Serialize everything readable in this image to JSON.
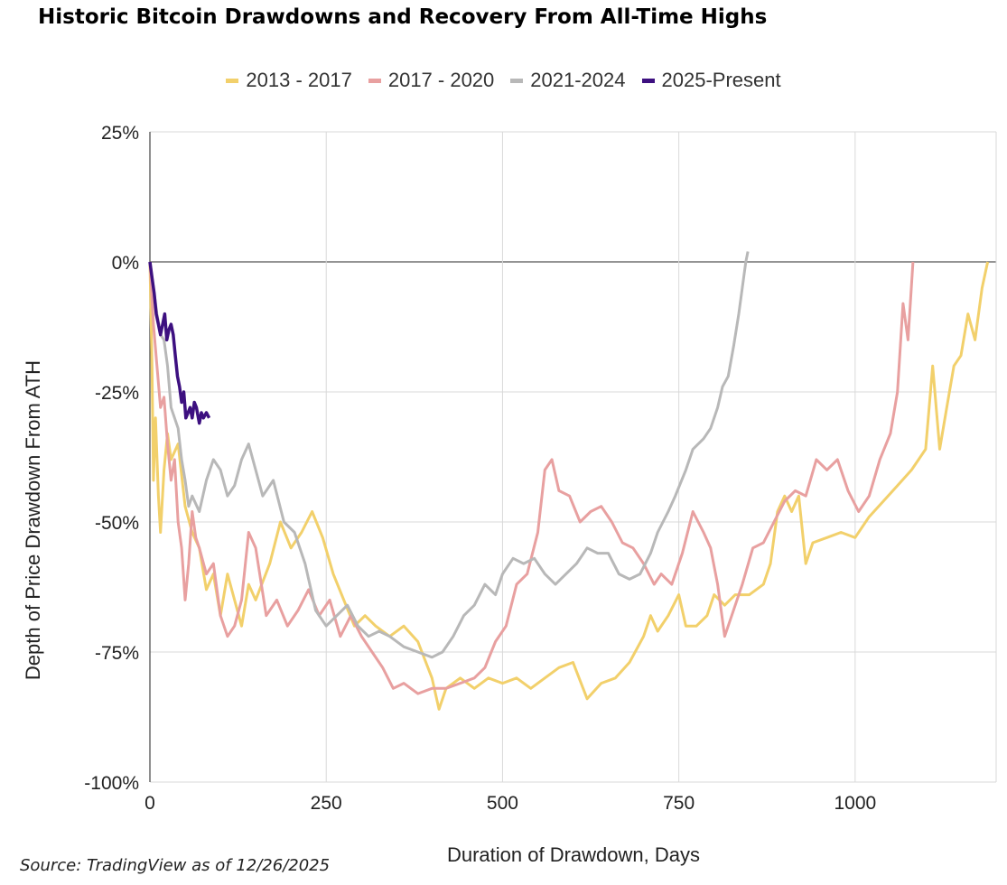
{
  "title": "Historic Bitcoin Drawdowns and Recovery From All-Time Highs",
  "source": "Source: TradingView as of 12/26/2025",
  "chart_data": {
    "type": "line",
    "title": "Historic Bitcoin Drawdowns and Recovery From All-Time Highs",
    "xlabel": "Duration of Drawdown, Days",
    "ylabel": "Depth of Price Drawdown From ATH",
    "xlim": [
      0,
      1200
    ],
    "ylim": [
      -100,
      25
    ],
    "x_ticks": [
      0,
      250,
      500,
      750,
      1000
    ],
    "x_tick_labels": [
      "0",
      "250",
      "500",
      "750",
      "1000"
    ],
    "y_ticks": [
      25,
      0,
      -25,
      -50,
      -75,
      -100
    ],
    "y_tick_labels": [
      "25%",
      "0%",
      "-25%",
      "-50%",
      "-75%",
      "-100%"
    ],
    "grid": true,
    "legend_position": "top-center",
    "series": [
      {
        "name": "2013 - 2017",
        "color": "#F2D06B",
        "points": [
          [
            0,
            0
          ],
          [
            3,
            -20
          ],
          [
            5,
            -42
          ],
          [
            8,
            -30
          ],
          [
            12,
            -45
          ],
          [
            15,
            -52
          ],
          [
            20,
            -40
          ],
          [
            25,
            -33
          ],
          [
            30,
            -38
          ],
          [
            40,
            -35
          ],
          [
            50,
            -47
          ],
          [
            60,
            -52
          ],
          [
            70,
            -55
          ],
          [
            80,
            -63
          ],
          [
            90,
            -60
          ],
          [
            100,
            -68
          ],
          [
            110,
            -60
          ],
          [
            120,
            -65
          ],
          [
            130,
            -70
          ],
          [
            140,
            -62
          ],
          [
            150,
            -65
          ],
          [
            170,
            -58
          ],
          [
            185,
            -50
          ],
          [
            200,
            -55
          ],
          [
            215,
            -52
          ],
          [
            230,
            -48
          ],
          [
            245,
            -53
          ],
          [
            260,
            -60
          ],
          [
            275,
            -65
          ],
          [
            290,
            -70
          ],
          [
            305,
            -68
          ],
          [
            320,
            -70
          ],
          [
            340,
            -72
          ],
          [
            360,
            -70
          ],
          [
            380,
            -73
          ],
          [
            400,
            -80
          ],
          [
            410,
            -86
          ],
          [
            420,
            -82
          ],
          [
            440,
            -80
          ],
          [
            460,
            -82
          ],
          [
            480,
            -80
          ],
          [
            500,
            -81
          ],
          [
            520,
            -80
          ],
          [
            540,
            -82
          ],
          [
            560,
            -80
          ],
          [
            580,
            -78
          ],
          [
            600,
            -77
          ],
          [
            620,
            -84
          ],
          [
            640,
            -81
          ],
          [
            660,
            -80
          ],
          [
            680,
            -77
          ],
          [
            700,
            -72
          ],
          [
            710,
            -68
          ],
          [
            720,
            -71
          ],
          [
            735,
            -68
          ],
          [
            750,
            -64
          ],
          [
            760,
            -70
          ],
          [
            775,
            -70
          ],
          [
            790,
            -68
          ],
          [
            800,
            -64
          ],
          [
            815,
            -66
          ],
          [
            830,
            -64
          ],
          [
            850,
            -64
          ],
          [
            870,
            -62
          ],
          [
            880,
            -58
          ],
          [
            890,
            -48
          ],
          [
            900,
            -45
          ],
          [
            910,
            -48
          ],
          [
            920,
            -45
          ],
          [
            930,
            -58
          ],
          [
            940,
            -54
          ],
          [
            960,
            -53
          ],
          [
            980,
            -52
          ],
          [
            1000,
            -53
          ],
          [
            1020,
            -49
          ],
          [
            1040,
            -46
          ],
          [
            1060,
            -43
          ],
          [
            1080,
            -40
          ],
          [
            1100,
            -36
          ],
          [
            1110,
            -20
          ],
          [
            1120,
            -36
          ],
          [
            1130,
            -28
          ],
          [
            1140,
            -20
          ],
          [
            1150,
            -18
          ],
          [
            1160,
            -10
          ],
          [
            1170,
            -15
          ],
          [
            1180,
            -5
          ],
          [
            1188,
            0
          ]
        ]
      },
      {
        "name": "2017 - 2020",
        "color": "#E8A0A0",
        "points": [
          [
            0,
            0
          ],
          [
            5,
            -12
          ],
          [
            10,
            -20
          ],
          [
            15,
            -28
          ],
          [
            20,
            -26
          ],
          [
            25,
            -35
          ],
          [
            30,
            -42
          ],
          [
            35,
            -38
          ],
          [
            40,
            -50
          ],
          [
            45,
            -55
          ],
          [
            50,
            -65
          ],
          [
            55,
            -58
          ],
          [
            60,
            -48
          ],
          [
            65,
            -53
          ],
          [
            70,
            -55
          ],
          [
            80,
            -60
          ],
          [
            90,
            -58
          ],
          [
            100,
            -68
          ],
          [
            110,
            -72
          ],
          [
            120,
            -70
          ],
          [
            130,
            -65
          ],
          [
            140,
            -52
          ],
          [
            150,
            -55
          ],
          [
            165,
            -68
          ],
          [
            180,
            -65
          ],
          [
            195,
            -70
          ],
          [
            210,
            -67
          ],
          [
            225,
            -63
          ],
          [
            240,
            -68
          ],
          [
            255,
            -65
          ],
          [
            270,
            -72
          ],
          [
            285,
            -68
          ],
          [
            300,
            -72
          ],
          [
            315,
            -75
          ],
          [
            330,
            -78
          ],
          [
            345,
            -82
          ],
          [
            360,
            -81
          ],
          [
            380,
            -83
          ],
          [
            400,
            -82
          ],
          [
            420,
            -82
          ],
          [
            440,
            -81
          ],
          [
            460,
            -80
          ],
          [
            475,
            -78
          ],
          [
            490,
            -73
          ],
          [
            505,
            -70
          ],
          [
            520,
            -62
          ],
          [
            535,
            -60
          ],
          [
            550,
            -52
          ],
          [
            560,
            -40
          ],
          [
            570,
            -38
          ],
          [
            580,
            -44
          ],
          [
            595,
            -45
          ],
          [
            610,
            -50
          ],
          [
            625,
            -48
          ],
          [
            640,
            -47
          ],
          [
            655,
            -50
          ],
          [
            670,
            -54
          ],
          [
            685,
            -55
          ],
          [
            700,
            -58
          ],
          [
            715,
            -62
          ],
          [
            725,
            -60
          ],
          [
            740,
            -62
          ],
          [
            755,
            -56
          ],
          [
            770,
            -48
          ],
          [
            785,
            -52
          ],
          [
            795,
            -55
          ],
          [
            805,
            -62
          ],
          [
            815,
            -72
          ],
          [
            825,
            -68
          ],
          [
            840,
            -62
          ],
          [
            855,
            -55
          ],
          [
            870,
            -54
          ],
          [
            885,
            -50
          ],
          [
            900,
            -46
          ],
          [
            915,
            -44
          ],
          [
            930,
            -45
          ],
          [
            945,
            -38
          ],
          [
            960,
            -40
          ],
          [
            975,
            -38
          ],
          [
            990,
            -44
          ],
          [
            1005,
            -48
          ],
          [
            1020,
            -45
          ],
          [
            1035,
            -38
          ],
          [
            1050,
            -33
          ],
          [
            1060,
            -25
          ],
          [
            1068,
            -8
          ],
          [
            1075,
            -15
          ],
          [
            1082,
            0
          ]
        ]
      },
      {
        "name": "2021-2024",
        "color": "#B8B8B8",
        "points": [
          [
            0,
            0
          ],
          [
            5,
            -5
          ],
          [
            10,
            -10
          ],
          [
            15,
            -14
          ],
          [
            20,
            -15
          ],
          [
            25,
            -20
          ],
          [
            30,
            -28
          ],
          [
            35,
            -30
          ],
          [
            40,
            -32
          ],
          [
            45,
            -38
          ],
          [
            50,
            -42
          ],
          [
            55,
            -47
          ],
          [
            60,
            -45
          ],
          [
            70,
            -48
          ],
          [
            80,
            -42
          ],
          [
            90,
            -38
          ],
          [
            100,
            -40
          ],
          [
            110,
            -45
          ],
          [
            120,
            -43
          ],
          [
            130,
            -38
          ],
          [
            140,
            -35
          ],
          [
            150,
            -40
          ],
          [
            160,
            -45
          ],
          [
            175,
            -42
          ],
          [
            190,
            -50
          ],
          [
            205,
            -52
          ],
          [
            220,
            -58
          ],
          [
            235,
            -67
          ],
          [
            250,
            -70
          ],
          [
            265,
            -68
          ],
          [
            280,
            -66
          ],
          [
            295,
            -70
          ],
          [
            310,
            -72
          ],
          [
            325,
            -71
          ],
          [
            340,
            -72
          ],
          [
            360,
            -74
          ],
          [
            380,
            -75
          ],
          [
            400,
            -76
          ],
          [
            415,
            -75
          ],
          [
            430,
            -72
          ],
          [
            445,
            -68
          ],
          [
            460,
            -66
          ],
          [
            475,
            -62
          ],
          [
            490,
            -64
          ],
          [
            500,
            -60
          ],
          [
            515,
            -57
          ],
          [
            530,
            -58
          ],
          [
            545,
            -57
          ],
          [
            560,
            -60
          ],
          [
            575,
            -62
          ],
          [
            590,
            -60
          ],
          [
            605,
            -58
          ],
          [
            620,
            -55
          ],
          [
            635,
            -56
          ],
          [
            650,
            -56
          ],
          [
            665,
            -60
          ],
          [
            680,
            -61
          ],
          [
            695,
            -60
          ],
          [
            710,
            -56
          ],
          [
            720,
            -52
          ],
          [
            735,
            -48
          ],
          [
            745,
            -45
          ],
          [
            760,
            -40
          ],
          [
            770,
            -36
          ],
          [
            785,
            -34
          ],
          [
            795,
            -32
          ],
          [
            805,
            -28
          ],
          [
            812,
            -24
          ],
          [
            820,
            -22
          ],
          [
            828,
            -16
          ],
          [
            835,
            -10
          ],
          [
            840,
            -5
          ],
          [
            845,
            0
          ],
          [
            848,
            2
          ]
        ]
      },
      {
        "name": "2025-Present",
        "color": "#3D1080",
        "points": [
          [
            0,
            0
          ],
          [
            3,
            -3
          ],
          [
            6,
            -6
          ],
          [
            9,
            -10
          ],
          [
            12,
            -12
          ],
          [
            15,
            -14
          ],
          [
            18,
            -12
          ],
          [
            21,
            -10
          ],
          [
            24,
            -15
          ],
          [
            27,
            -13
          ],
          [
            30,
            -12
          ],
          [
            33,
            -14
          ],
          [
            36,
            -18
          ],
          [
            39,
            -22
          ],
          [
            42,
            -24
          ],
          [
            45,
            -27
          ],
          [
            48,
            -25
          ],
          [
            51,
            -30
          ],
          [
            54,
            -29
          ],
          [
            57,
            -28
          ],
          [
            60,
            -30
          ],
          [
            63,
            -27
          ],
          [
            66,
            -28
          ],
          [
            70,
            -31
          ],
          [
            73,
            -29
          ],
          [
            76,
            -30
          ],
          [
            80,
            -29
          ],
          [
            84,
            -30
          ]
        ]
      }
    ]
  }
}
